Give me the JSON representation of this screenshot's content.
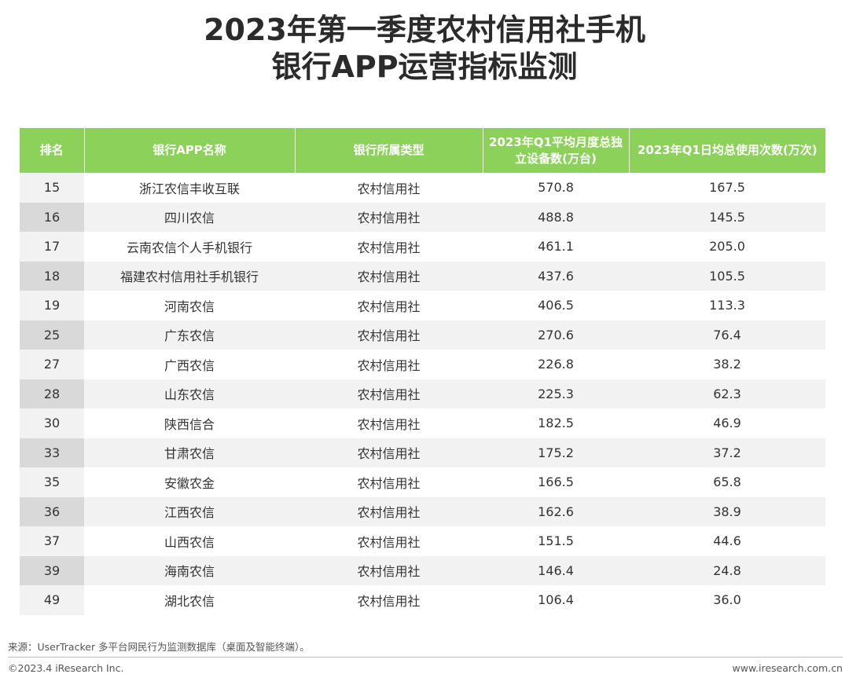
{
  "title": {
    "line1": "2023年第一季度农村信用社手机",
    "line2": "银行APP运营指标监测"
  },
  "table": {
    "headers": [
      "排名",
      "银行APP名称",
      "银行所属类型",
      "2023年Q1平均月度总独立设备数(万台)",
      "2023年Q1日均总使用次数(万次)"
    ],
    "rows": [
      [
        "15",
        "浙江农信丰收互联",
        "农村信用社",
        "570.8",
        "167.5"
      ],
      [
        "16",
        "四川农信",
        "农村信用社",
        "488.8",
        "145.5"
      ],
      [
        "17",
        "云南农信个人手机银行",
        "农村信用社",
        "461.1",
        "205.0"
      ],
      [
        "18",
        "福建农村信用社手机银行",
        "农村信用社",
        "437.6",
        "105.5"
      ],
      [
        "19",
        "河南农信",
        "农村信用社",
        "406.5",
        "113.3"
      ],
      [
        "25",
        "广东农信",
        "农村信用社",
        "270.6",
        "76.4"
      ],
      [
        "27",
        "广西农信",
        "农村信用社",
        "226.8",
        "38.2"
      ],
      [
        "28",
        "山东农信",
        "农村信用社",
        "225.3",
        "62.3"
      ],
      [
        "30",
        "陕西信合",
        "农村信用社",
        "182.5",
        "46.9"
      ],
      [
        "33",
        "甘肃农信",
        "农村信用社",
        "175.2",
        "37.2"
      ],
      [
        "35",
        "安徽农金",
        "农村信用社",
        "166.5",
        "65.8"
      ],
      [
        "36",
        "江西农信",
        "农村信用社",
        "162.6",
        "38.9"
      ],
      [
        "37",
        "山西农信",
        "农村信用社",
        "151.5",
        "44.6"
      ],
      [
        "39",
        "海南农信",
        "农村信用社",
        "146.4",
        "24.8"
      ],
      [
        "49",
        "湖北农信",
        "农村信用社",
        "106.4",
        "36.0"
      ]
    ]
  },
  "footer": {
    "source": "来源：UserTracker 多平台网民行为监测数据库（桌面及智能终端）。",
    "copyright": "©2023.4 iResearch Inc.",
    "website": "www.iresearch.com.cn"
  },
  "colors": {
    "header_bg": "#8cd25a",
    "row_alt_bg": "#f2f2f2",
    "rank_alt_bg": "#d9d9d9"
  }
}
